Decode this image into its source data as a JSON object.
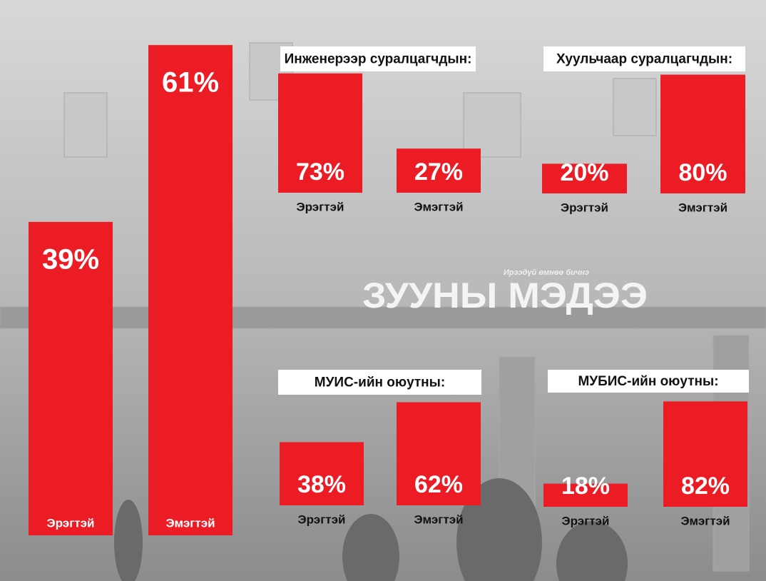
{
  "watermark": {
    "title": "ЗУУНЫ МЭДЭЭ",
    "tagline": "Ирээдүй өмнөө бичнэ"
  },
  "chart_data": [
    {
      "type": "bar",
      "categories": [
        "Эрэгтэй",
        "Эмэгтэй"
      ],
      "values": [
        39,
        61
      ],
      "value_labels": [
        "39%",
        "61%"
      ],
      "color": "#ec1c24"
    },
    {
      "type": "bar",
      "title": "Инженерээр суралцагчдын:",
      "categories": [
        "Эрэгтэй",
        "Эмэгтэй"
      ],
      "values": [
        73,
        27
      ],
      "value_labels": [
        "73%",
        "27%"
      ],
      "color": "#ec1c24"
    },
    {
      "type": "bar",
      "title": "Хуульчаар суралцагчдын:",
      "categories": [
        "Эрэгтэй",
        "Эмэгтэй"
      ],
      "values": [
        20,
        80
      ],
      "value_labels": [
        "20%",
        "80%"
      ],
      "color": "#ec1c24"
    },
    {
      "type": "bar",
      "title": "МУИС-ийн оюутны:",
      "categories": [
        "Эрэгтэй",
        "Эмэгтэй"
      ],
      "values": [
        38,
        62
      ],
      "value_labels": [
        "38%",
        "62%"
      ],
      "color": "#ec1c24"
    },
    {
      "type": "bar",
      "title": "МУБИС-ийн оюутны:",
      "categories": [
        "Эрэгтэй",
        "Эмэгтэй"
      ],
      "values": [
        18,
        82
      ],
      "value_labels": [
        "18%",
        "82%"
      ],
      "color": "#ec1c24"
    }
  ]
}
